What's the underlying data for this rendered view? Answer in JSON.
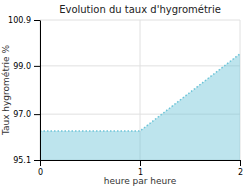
{
  "chart_data": {
    "type": "area",
    "title": "Evolution du taux d'hygrométrie",
    "xlabel": "heure par heure",
    "ylabel": "Taux hygrométrie %",
    "x": [
      0,
      1,
      2
    ],
    "values": [
      96.3,
      96.3,
      99.5
    ],
    "xlim": [
      0,
      2
    ],
    "ylim": [
      95.1,
      100.9
    ],
    "xticks": [
      0,
      1,
      2
    ],
    "yticks": [
      95.1,
      {
        "value": 97.0,
        "label": "97.0"
      },
      {
        "value": 99.0,
        "label": "99.0"
      },
      100.9
    ],
    "color": "#6cc4d8",
    "line_style": "dotted",
    "grid": true
  }
}
